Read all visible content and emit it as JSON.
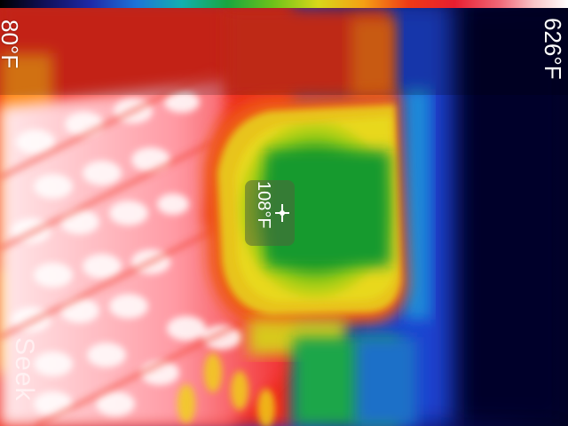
{
  "temperature_scale": {
    "min": "80°F",
    "max": "626°F"
  },
  "spot_reading": {
    "value": "108°F",
    "icon": "crosshair-icon"
  },
  "watermark": "Seek",
  "palette": {
    "name": "rainbow-thermal",
    "colors": [
      "#000000",
      "#10105a",
      "#1f2aa8",
      "#1c74d8",
      "#12b0b0",
      "#18a640",
      "#6cc21a",
      "#d8d81a",
      "#f5a014",
      "#ee3a16",
      "#e81e30",
      "#f06878",
      "#ffffff"
    ]
  }
}
